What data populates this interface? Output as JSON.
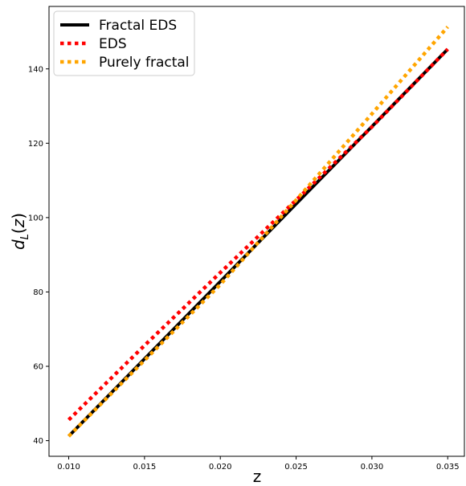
{
  "chart_data": {
    "type": "line",
    "title": "",
    "xlabel": "z",
    "ylabel": "d_L(z)",
    "xlim": [
      0.0087,
      0.0361
    ],
    "ylim": [
      35.8,
      156.8
    ],
    "grid": false,
    "legend_position": "top-left",
    "x_ticks": [
      0.01,
      0.015,
      0.02,
      0.025,
      0.03,
      0.035
    ],
    "x_tick_labels": [
      "0.010",
      "0.015",
      "0.020",
      "0.025",
      "0.030",
      "0.035"
    ],
    "y_ticks": [
      40,
      60,
      80,
      100,
      120,
      140
    ],
    "y_tick_labels": [
      "40",
      "60",
      "80",
      "100",
      "120",
      "140"
    ],
    "series": [
      {
        "name": "Fractal EDS",
        "color": "#000000",
        "style": "solid",
        "x": [
          0.01,
          0.015,
          0.02,
          0.025,
          0.03,
          0.035
        ],
        "y": [
          41.2,
          62.0,
          82.8,
          103.7,
          124.5,
          145.3
        ]
      },
      {
        "name": "EDS",
        "color": "#ff0000",
        "style": "dotted",
        "x": [
          0.01,
          0.015,
          0.02,
          0.025,
          0.03,
          0.035
        ],
        "y": [
          45.6,
          65.6,
          85.2,
          104.7,
          124.4,
          145.3
        ]
      },
      {
        "name": "Purely fractal",
        "color": "#ffa500",
        "style": "dotted",
        "x": [
          0.01,
          0.015,
          0.02,
          0.025,
          0.03,
          0.035
        ],
        "y": [
          41.2,
          61.6,
          82.0,
          104.7,
          127.9,
          151.3
        ]
      }
    ]
  }
}
